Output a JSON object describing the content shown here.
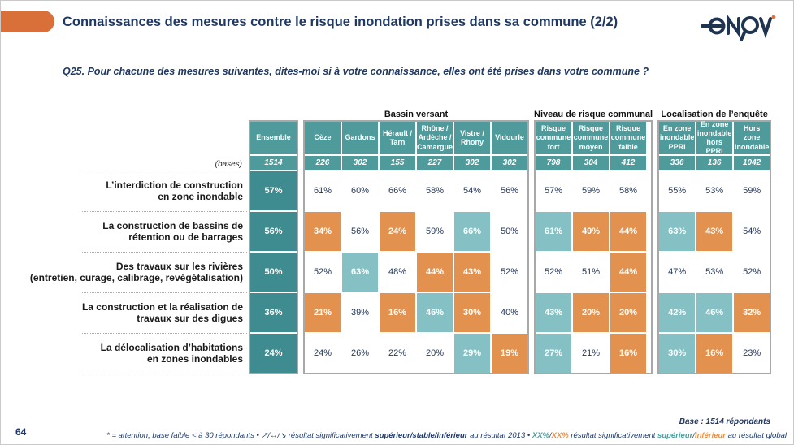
{
  "colors": {
    "accent-orange": "#d9703a",
    "navy": "#1f3864",
    "teal-header": "#4f9b9b",
    "teal-dark": "#3e8c8f",
    "teal-light": "#85c1c4",
    "orange-low": "#e2914e",
    "border-gray": "#a8a8a8"
  },
  "header": {
    "title": "Connaissances des mesures contre le risque inondation prises dans sa commune (2/2)",
    "logo": "enov"
  },
  "question": "Q25. Pour chacune des mesures suivantes, dites-moi si à votre connaissance, elles ont été prises dans votre commune ?",
  "table": {
    "bases_label": "(bases)",
    "groups": [
      {
        "key": "ensemble",
        "title": "",
        "headers": [
          "Ensemble"
        ],
        "bases": [
          "1514"
        ]
      },
      {
        "key": "bassin",
        "title": "Bassin versant",
        "headers": [
          "Cèze",
          "Gardons",
          "Hérault / Tarn",
          "Rhône / Ardèche / Camargue",
          "Vistre / Rhony",
          "Vidourle"
        ],
        "bases": [
          "226",
          "302",
          "155",
          "227",
          "302",
          "302"
        ]
      },
      {
        "key": "niveau",
        "title": "Niveau de risque communal",
        "headers": [
          "Risque commune fort",
          "Risque commune moyen",
          "Risque commune faible"
        ],
        "bases": [
          "798",
          "304",
          "412"
        ]
      },
      {
        "key": "loc",
        "title": "Localisation de l’enquête",
        "headers": [
          "En zone inondable PPRI",
          "En zone inondable hors PPRI",
          "Hors zone inondable"
        ],
        "bases": [
          "336",
          "136",
          "1042"
        ]
      }
    ],
    "sig_legend": {
      "high": "significativement supérieur",
      "low": "significativement inférieur"
    },
    "rows": [
      {
        "label": "L’interdiction de construction\nen zone inondable",
        "cells": {
          "ensemble": [
            [
              "57%",
              "ens"
            ]
          ],
          "bassin": [
            [
              "61%",
              ""
            ],
            [
              "60%",
              ""
            ],
            [
              "66%",
              ""
            ],
            [
              "58%",
              ""
            ],
            [
              "54%",
              ""
            ],
            [
              "56%",
              ""
            ]
          ],
          "niveau": [
            [
              "57%",
              ""
            ],
            [
              "59%",
              ""
            ],
            [
              "58%",
              ""
            ]
          ],
          "loc": [
            [
              "55%",
              ""
            ],
            [
              "53%",
              ""
            ],
            [
              "59%",
              ""
            ]
          ]
        }
      },
      {
        "label": "La construction de bassins de\nrétention ou de barrages",
        "cells": {
          "ensemble": [
            [
              "56%",
              "ens"
            ]
          ],
          "bassin": [
            [
              "34%",
              "low"
            ],
            [
              "56%",
              ""
            ],
            [
              "24%",
              "low"
            ],
            [
              "59%",
              ""
            ],
            [
              "66%",
              "high"
            ],
            [
              "50%",
              ""
            ]
          ],
          "niveau": [
            [
              "61%",
              "high"
            ],
            [
              "49%",
              "low"
            ],
            [
              "44%",
              "low"
            ]
          ],
          "loc": [
            [
              "63%",
              "high"
            ],
            [
              "43%",
              "low"
            ],
            [
              "54%",
              ""
            ]
          ]
        }
      },
      {
        "label": "Des travaux sur les rivières\n(entretien, curage, calibrage, revégétalisation)",
        "cells": {
          "ensemble": [
            [
              "50%",
              "ens"
            ]
          ],
          "bassin": [
            [
              "52%",
              ""
            ],
            [
              "63%",
              "high"
            ],
            [
              "48%",
              ""
            ],
            [
              "44%",
              "low"
            ],
            [
              "43%",
              "low"
            ],
            [
              "52%",
              ""
            ]
          ],
          "niveau": [
            [
              "52%",
              ""
            ],
            [
              "51%",
              ""
            ],
            [
              "44%",
              "low"
            ]
          ],
          "loc": [
            [
              "47%",
              ""
            ],
            [
              "53%",
              ""
            ],
            [
              "52%",
              ""
            ]
          ]
        }
      },
      {
        "label": "La construction et la réalisation de\ntravaux sur des digues",
        "cells": {
          "ensemble": [
            [
              "36%",
              "ens"
            ]
          ],
          "bassin": [
            [
              "21%",
              "low"
            ],
            [
              "39%",
              ""
            ],
            [
              "16%",
              "low"
            ],
            [
              "46%",
              "high"
            ],
            [
              "30%",
              "low"
            ],
            [
              "40%",
              ""
            ]
          ],
          "niveau": [
            [
              "43%",
              "high"
            ],
            [
              "20%",
              "low"
            ],
            [
              "20%",
              "low"
            ]
          ],
          "loc": [
            [
              "42%",
              "high"
            ],
            [
              "46%",
              "high"
            ],
            [
              "32%",
              "low"
            ]
          ]
        }
      },
      {
        "label": "La délocalisation d’habitations\nen zones inondables",
        "cells": {
          "ensemble": [
            [
              "24%",
              "ens"
            ]
          ],
          "bassin": [
            [
              "24%",
              ""
            ],
            [
              "26%",
              ""
            ],
            [
              "22%",
              ""
            ],
            [
              "20%",
              ""
            ],
            [
              "29%",
              "high"
            ],
            [
              "19%",
              "low"
            ]
          ],
          "niveau": [
            [
              "27%",
              "high"
            ],
            [
              "21%",
              ""
            ],
            [
              "16%",
              "low"
            ]
          ],
          "loc": [
            [
              "30%",
              "high"
            ],
            [
              "16%",
              "low"
            ],
            [
              "23%",
              ""
            ]
          ]
        }
      }
    ]
  },
  "footer": {
    "page_number": "64",
    "base_note": "Base : 1514 répondants",
    "note": {
      "part1": "* = attention, base faible < à 30 répondants • ↗/↔/↘  résultat significativement ",
      "bold1": "supérieur/stable/inférieur",
      "part2": " au résultat 2013 • ",
      "xx_high": "XX%",
      "slash1": "/",
      "xx_low": "XX%",
      "part3": " résultat significativement ",
      "sup": "supérieur",
      "slash2": "/",
      "inf": "inférieur",
      "part4": " au résultat global"
    }
  }
}
